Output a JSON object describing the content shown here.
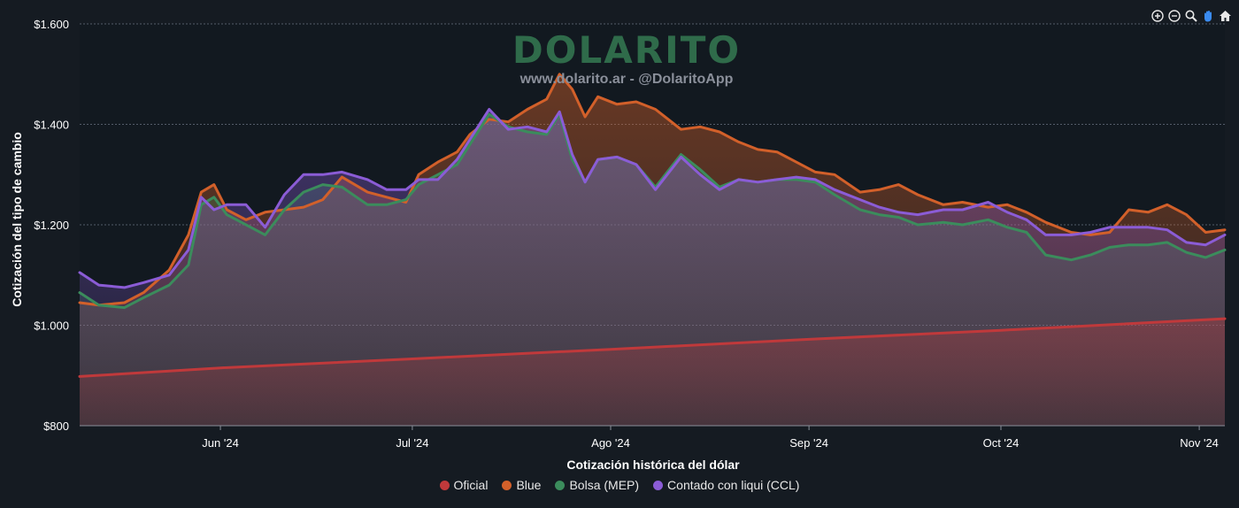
{
  "watermark": {
    "title": "DOLARITO",
    "subtitle": "www.dolarito.ar - @DolaritoApp"
  },
  "toolbar": [
    {
      "name": "zoom-in-icon",
      "glyph": "+"
    },
    {
      "name": "zoom-out-icon",
      "glyph": "−"
    },
    {
      "name": "zoom-selection-icon",
      "glyph": "⌕"
    },
    {
      "name": "pan-hand-icon",
      "glyph": "✋"
    },
    {
      "name": "home-reset-icon",
      "glyph": "⌂"
    }
  ],
  "chart_data": {
    "type": "area",
    "xlabel": "Cotización histórica del dólar",
    "ylabel": "Cotización del tipo de cambio",
    "ylim": [
      800,
      1600
    ],
    "yticks": [
      800,
      1000,
      1200,
      1400,
      1600
    ],
    "ytick_labels": [
      "$800",
      "$1.000",
      "$1.200",
      "$1.400",
      "$1.600"
    ],
    "xlim": [
      "2024-05-10",
      "2024-11-05"
    ],
    "xticks": [
      {
        "date": "2024-06-01",
        "label": "Jun '24"
      },
      {
        "date": "2024-07-01",
        "label": "Jul '24"
      },
      {
        "date": "2024-08-01",
        "label": "Ago '24"
      },
      {
        "date": "2024-09-01",
        "label": "Sep '24"
      },
      {
        "date": "2024-10-01",
        "label": "Oct '24"
      },
      {
        "date": "2024-11-01",
        "label": "Nov '24"
      }
    ],
    "grid": true,
    "legend_position": "bottom-center",
    "series": [
      {
        "name": "Oficial",
        "color": "#c0393b",
        "points": [
          [
            "2024-05-10",
            898
          ],
          [
            "2024-06-01",
            915
          ],
          [
            "2024-07-01",
            933
          ],
          [
            "2024-08-01",
            952
          ],
          [
            "2024-09-01",
            972
          ],
          [
            "2024-10-01",
            990
          ],
          [
            "2024-11-05",
            1013
          ]
        ]
      },
      {
        "name": "Blue",
        "color": "#d2602a",
        "points": [
          [
            "2024-05-10",
            1045
          ],
          [
            "2024-05-13",
            1040
          ],
          [
            "2024-05-17",
            1045
          ],
          [
            "2024-05-20",
            1065
          ],
          [
            "2024-05-24",
            1110
          ],
          [
            "2024-05-27",
            1180
          ],
          [
            "2024-05-29",
            1265
          ],
          [
            "2024-05-31",
            1280
          ],
          [
            "2024-06-02",
            1230
          ],
          [
            "2024-06-05",
            1210
          ],
          [
            "2024-06-08",
            1225
          ],
          [
            "2024-06-11",
            1230
          ],
          [
            "2024-06-14",
            1235
          ],
          [
            "2024-06-17",
            1250
          ],
          [
            "2024-06-20",
            1295
          ],
          [
            "2024-06-24",
            1265
          ],
          [
            "2024-06-27",
            1255
          ],
          [
            "2024-06-30",
            1245
          ],
          [
            "2024-07-02",
            1300
          ],
          [
            "2024-07-05",
            1325
          ],
          [
            "2024-07-08",
            1345
          ],
          [
            "2024-07-10",
            1380
          ],
          [
            "2024-07-13",
            1410
          ],
          [
            "2024-07-16",
            1405
          ],
          [
            "2024-07-19",
            1430
          ],
          [
            "2024-07-22",
            1450
          ],
          [
            "2024-07-24",
            1500
          ],
          [
            "2024-07-26",
            1470
          ],
          [
            "2024-07-28",
            1415
          ],
          [
            "2024-07-30",
            1455
          ],
          [
            "2024-08-02",
            1440
          ],
          [
            "2024-08-05",
            1445
          ],
          [
            "2024-08-08",
            1430
          ],
          [
            "2024-08-12",
            1390
          ],
          [
            "2024-08-15",
            1395
          ],
          [
            "2024-08-18",
            1385
          ],
          [
            "2024-08-21",
            1365
          ],
          [
            "2024-08-24",
            1350
          ],
          [
            "2024-08-27",
            1345
          ],
          [
            "2024-08-30",
            1325
          ],
          [
            "2024-09-02",
            1305
          ],
          [
            "2024-09-05",
            1300
          ],
          [
            "2024-09-09",
            1265
          ],
          [
            "2024-09-12",
            1270
          ],
          [
            "2024-09-15",
            1280
          ],
          [
            "2024-09-18",
            1260
          ],
          [
            "2024-09-22",
            1240
          ],
          [
            "2024-09-25",
            1245
          ],
          [
            "2024-09-29",
            1235
          ],
          [
            "2024-10-02",
            1240
          ],
          [
            "2024-10-05",
            1225
          ],
          [
            "2024-10-08",
            1205
          ],
          [
            "2024-10-12",
            1185
          ],
          [
            "2024-10-15",
            1180
          ],
          [
            "2024-10-18",
            1185
          ],
          [
            "2024-10-21",
            1230
          ],
          [
            "2024-10-24",
            1225
          ],
          [
            "2024-10-27",
            1240
          ],
          [
            "2024-10-30",
            1220
          ],
          [
            "2024-11-02",
            1185
          ],
          [
            "2024-11-05",
            1190
          ]
        ]
      },
      {
        "name": "Bolsa (MEP)",
        "color": "#3b8c5c",
        "points": [
          [
            "2024-05-10",
            1065
          ],
          [
            "2024-05-13",
            1040
          ],
          [
            "2024-05-17",
            1035
          ],
          [
            "2024-05-20",
            1055
          ],
          [
            "2024-05-24",
            1080
          ],
          [
            "2024-05-27",
            1120
          ],
          [
            "2024-05-29",
            1240
          ],
          [
            "2024-05-31",
            1255
          ],
          [
            "2024-06-02",
            1220
          ],
          [
            "2024-06-05",
            1200
          ],
          [
            "2024-06-08",
            1180
          ],
          [
            "2024-06-11",
            1230
          ],
          [
            "2024-06-14",
            1265
          ],
          [
            "2024-06-17",
            1280
          ],
          [
            "2024-06-20",
            1275
          ],
          [
            "2024-06-24",
            1240
          ],
          [
            "2024-06-27",
            1240
          ],
          [
            "2024-06-30",
            1250
          ],
          [
            "2024-07-02",
            1280
          ],
          [
            "2024-07-05",
            1300
          ],
          [
            "2024-07-08",
            1320
          ],
          [
            "2024-07-10",
            1360
          ],
          [
            "2024-07-13",
            1420
          ],
          [
            "2024-07-16",
            1395
          ],
          [
            "2024-07-19",
            1385
          ],
          [
            "2024-07-22",
            1380
          ],
          [
            "2024-07-24",
            1420
          ],
          [
            "2024-07-26",
            1330
          ],
          [
            "2024-07-28",
            1285
          ],
          [
            "2024-07-30",
            1330
          ],
          [
            "2024-08-02",
            1335
          ],
          [
            "2024-08-05",
            1320
          ],
          [
            "2024-08-08",
            1275
          ],
          [
            "2024-08-12",
            1340
          ],
          [
            "2024-08-15",
            1310
          ],
          [
            "2024-08-18",
            1275
          ],
          [
            "2024-08-21",
            1290
          ],
          [
            "2024-08-24",
            1285
          ],
          [
            "2024-08-27",
            1290
          ],
          [
            "2024-08-30",
            1290
          ],
          [
            "2024-09-02",
            1285
          ],
          [
            "2024-09-05",
            1260
          ],
          [
            "2024-09-09",
            1230
          ],
          [
            "2024-09-12",
            1220
          ],
          [
            "2024-09-15",
            1215
          ],
          [
            "2024-09-18",
            1200
          ],
          [
            "2024-09-22",
            1205
          ],
          [
            "2024-09-25",
            1200
          ],
          [
            "2024-09-29",
            1210
          ],
          [
            "2024-10-02",
            1195
          ],
          [
            "2024-10-05",
            1185
          ],
          [
            "2024-10-08",
            1140
          ],
          [
            "2024-10-12",
            1130
          ],
          [
            "2024-10-15",
            1140
          ],
          [
            "2024-10-18",
            1155
          ],
          [
            "2024-10-21",
            1160
          ],
          [
            "2024-10-24",
            1160
          ],
          [
            "2024-10-27",
            1165
          ],
          [
            "2024-10-30",
            1145
          ],
          [
            "2024-11-02",
            1135
          ],
          [
            "2024-11-05",
            1150
          ]
        ]
      },
      {
        "name": "Contado con liqui (CCL)",
        "color": "#8b5cd6",
        "points": [
          [
            "2024-05-10",
            1105
          ],
          [
            "2024-05-13",
            1080
          ],
          [
            "2024-05-17",
            1075
          ],
          [
            "2024-05-20",
            1085
          ],
          [
            "2024-05-24",
            1100
          ],
          [
            "2024-05-27",
            1150
          ],
          [
            "2024-05-29",
            1255
          ],
          [
            "2024-05-31",
            1230
          ],
          [
            "2024-06-02",
            1240
          ],
          [
            "2024-06-05",
            1240
          ],
          [
            "2024-06-08",
            1195
          ],
          [
            "2024-06-11",
            1260
          ],
          [
            "2024-06-14",
            1300
          ],
          [
            "2024-06-17",
            1300
          ],
          [
            "2024-06-20",
            1305
          ],
          [
            "2024-06-24",
            1290
          ],
          [
            "2024-06-27",
            1270
          ],
          [
            "2024-06-30",
            1270
          ],
          [
            "2024-07-02",
            1290
          ],
          [
            "2024-07-05",
            1290
          ],
          [
            "2024-07-08",
            1330
          ],
          [
            "2024-07-10",
            1370
          ],
          [
            "2024-07-13",
            1430
          ],
          [
            "2024-07-16",
            1390
          ],
          [
            "2024-07-19",
            1395
          ],
          [
            "2024-07-22",
            1385
          ],
          [
            "2024-07-24",
            1425
          ],
          [
            "2024-07-26",
            1340
          ],
          [
            "2024-07-28",
            1285
          ],
          [
            "2024-07-30",
            1330
          ],
          [
            "2024-08-02",
            1335
          ],
          [
            "2024-08-05",
            1320
          ],
          [
            "2024-08-08",
            1270
          ],
          [
            "2024-08-12",
            1335
          ],
          [
            "2024-08-15",
            1300
          ],
          [
            "2024-08-18",
            1270
          ],
          [
            "2024-08-21",
            1290
          ],
          [
            "2024-08-24",
            1285
          ],
          [
            "2024-08-27",
            1290
          ],
          [
            "2024-08-30",
            1295
          ],
          [
            "2024-09-02",
            1290
          ],
          [
            "2024-09-05",
            1270
          ],
          [
            "2024-09-09",
            1250
          ],
          [
            "2024-09-12",
            1235
          ],
          [
            "2024-09-15",
            1225
          ],
          [
            "2024-09-18",
            1220
          ],
          [
            "2024-09-22",
            1230
          ],
          [
            "2024-09-25",
            1230
          ],
          [
            "2024-09-29",
            1245
          ],
          [
            "2024-10-02",
            1225
          ],
          [
            "2024-10-05",
            1210
          ],
          [
            "2024-10-08",
            1180
          ],
          [
            "2024-10-12",
            1180
          ],
          [
            "2024-10-15",
            1185
          ],
          [
            "2024-10-18",
            1195
          ],
          [
            "2024-10-21",
            1195
          ],
          [
            "2024-10-24",
            1195
          ],
          [
            "2024-10-27",
            1190
          ],
          [
            "2024-10-30",
            1165
          ],
          [
            "2024-11-02",
            1160
          ],
          [
            "2024-11-05",
            1180
          ]
        ]
      }
    ]
  }
}
